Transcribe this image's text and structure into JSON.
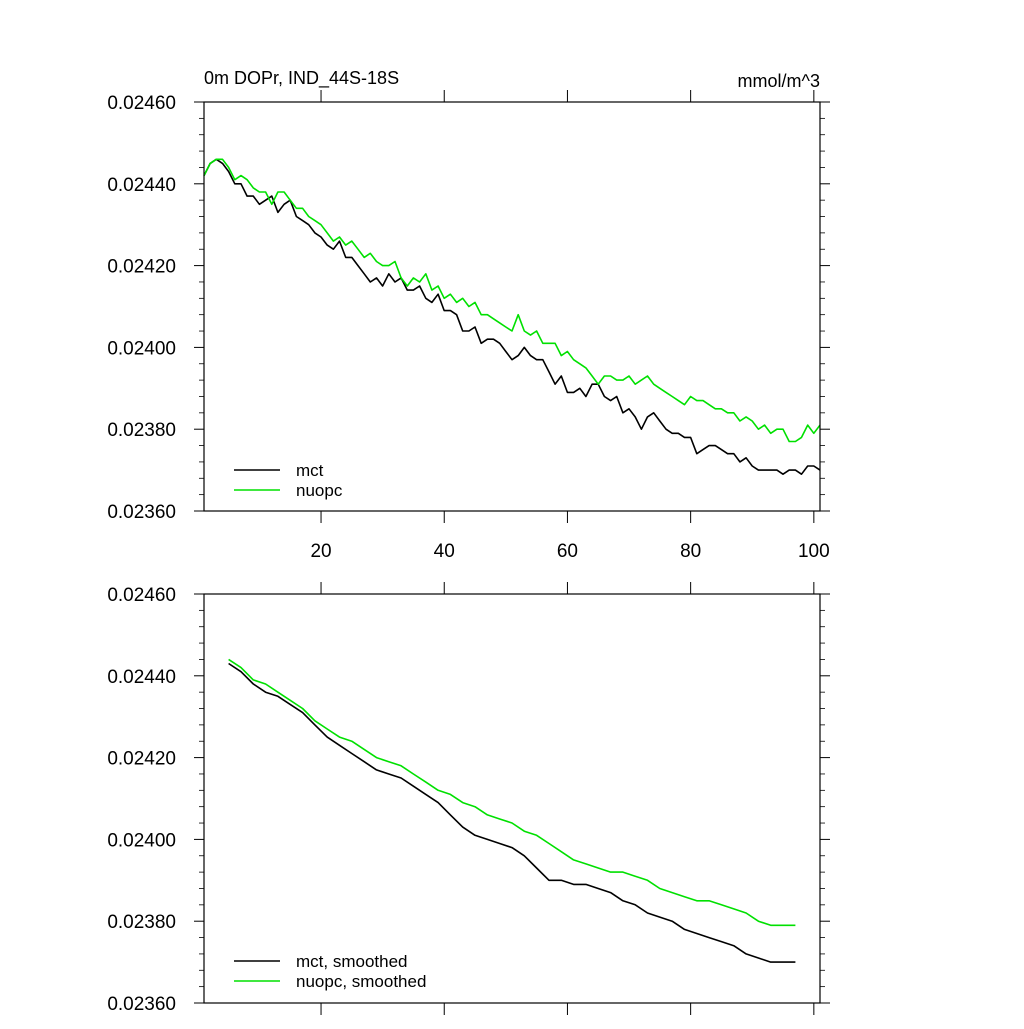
{
  "chart_data": [
    {
      "type": "line",
      "title": "0m DOPr, IND_44S-18S",
      "units": "mmol/m^3",
      "xlim": [
        1,
        101
      ],
      "ylim": [
        0.0236,
        0.0246
      ],
      "x_ticks": [
        20,
        40,
        60,
        80,
        100
      ],
      "x_tick_labels": [
        "20",
        "40",
        "60",
        "80",
        "100"
      ],
      "y_ticks": [
        0.0236,
        0.0238,
        0.024,
        0.0242,
        0.0244,
        0.0246
      ],
      "y_tick_labels": [
        "0.02360",
        "0.02380",
        "0.02400",
        "0.02420",
        "0.02440",
        "0.02460"
      ],
      "legend_position": "bottom-left",
      "series": [
        {
          "name": "mct",
          "color": "#000000",
          "x": [
            1,
            2,
            3,
            4,
            5,
            6,
            7,
            8,
            9,
            10,
            11,
            12,
            13,
            14,
            15,
            16,
            17,
            18,
            19,
            20,
            21,
            22,
            23,
            24,
            25,
            26,
            27,
            28,
            29,
            30,
            31,
            32,
            33,
            34,
            35,
            36,
            37,
            38,
            39,
            40,
            41,
            42,
            43,
            44,
            45,
            46,
            47,
            48,
            49,
            50,
            51,
            52,
            53,
            54,
            55,
            56,
            57,
            58,
            59,
            60,
            61,
            62,
            63,
            64,
            65,
            66,
            67,
            68,
            69,
            70,
            71,
            72,
            73,
            74,
            75,
            76,
            77,
            78,
            79,
            80,
            81,
            82,
            83,
            84,
            85,
            86,
            87,
            88,
            89,
            90,
            91,
            92,
            93,
            94,
            95,
            96,
            97,
            98,
            99,
            100,
            101
          ],
          "values": [
            0.02442,
            0.02445,
            0.02446,
            0.02445,
            0.02443,
            0.0244,
            0.0244,
            0.02437,
            0.02437,
            0.02435,
            0.02436,
            0.02437,
            0.02433,
            0.02435,
            0.02436,
            0.02432,
            0.02431,
            0.0243,
            0.02428,
            0.02427,
            0.02425,
            0.02424,
            0.02426,
            0.02422,
            0.02422,
            0.0242,
            0.02418,
            0.02416,
            0.02417,
            0.02415,
            0.02418,
            0.02416,
            0.02417,
            0.02414,
            0.02414,
            0.02415,
            0.02412,
            0.02411,
            0.02413,
            0.02409,
            0.02409,
            0.02408,
            0.02404,
            0.02404,
            0.02405,
            0.02401,
            0.02402,
            0.02402,
            0.02401,
            0.02399,
            0.02397,
            0.02398,
            0.024,
            0.02398,
            0.02397,
            0.02397,
            0.02394,
            0.02391,
            0.02393,
            0.02389,
            0.02389,
            0.0239,
            0.02388,
            0.02391,
            0.02391,
            0.02388,
            0.02387,
            0.02388,
            0.02384,
            0.02385,
            0.02383,
            0.0238,
            0.02383,
            0.02384,
            0.02382,
            0.0238,
            0.02379,
            0.02379,
            0.02378,
            0.02378,
            0.02374,
            0.02375,
            0.02376,
            0.02376,
            0.02375,
            0.02374,
            0.02374,
            0.02372,
            0.02373,
            0.02371,
            0.0237,
            0.0237,
            0.0237,
            0.0237,
            0.02369,
            0.0237,
            0.0237,
            0.02369,
            0.02371,
            0.02371,
            0.0237
          ]
        },
        {
          "name": "nuopc",
          "color": "#00e000",
          "x": [
            1,
            2,
            3,
            4,
            5,
            6,
            7,
            8,
            9,
            10,
            11,
            12,
            13,
            14,
            15,
            16,
            17,
            18,
            19,
            20,
            21,
            22,
            23,
            24,
            25,
            26,
            27,
            28,
            29,
            30,
            31,
            32,
            33,
            34,
            35,
            36,
            37,
            38,
            39,
            40,
            41,
            42,
            43,
            44,
            45,
            46,
            47,
            48,
            49,
            50,
            51,
            52,
            53,
            54,
            55,
            56,
            57,
            58,
            59,
            60,
            61,
            62,
            63,
            64,
            65,
            66,
            67,
            68,
            69,
            70,
            71,
            72,
            73,
            74,
            75,
            76,
            77,
            78,
            79,
            80,
            81,
            82,
            83,
            84,
            85,
            86,
            87,
            88,
            89,
            90,
            91,
            92,
            93,
            94,
            95,
            96,
            97,
            98,
            99,
            100,
            101
          ],
          "values": [
            0.02442,
            0.02445,
            0.02446,
            0.02446,
            0.02444,
            0.02441,
            0.02442,
            0.02441,
            0.02439,
            0.02438,
            0.02438,
            0.02435,
            0.02438,
            0.02438,
            0.02436,
            0.02434,
            0.02434,
            0.02432,
            0.02431,
            0.0243,
            0.02428,
            0.02426,
            0.02427,
            0.02425,
            0.02426,
            0.02424,
            0.02422,
            0.02423,
            0.02421,
            0.0242,
            0.0242,
            0.02421,
            0.02417,
            0.02415,
            0.02417,
            0.02416,
            0.02418,
            0.02414,
            0.02415,
            0.02412,
            0.02413,
            0.02411,
            0.02412,
            0.0241,
            0.02411,
            0.02408,
            0.02408,
            0.02407,
            0.02406,
            0.02405,
            0.02404,
            0.02408,
            0.02404,
            0.02403,
            0.02404,
            0.02401,
            0.02401,
            0.02401,
            0.02398,
            0.02399,
            0.02397,
            0.02396,
            0.02395,
            0.02393,
            0.02391,
            0.02393,
            0.02393,
            0.02392,
            0.02392,
            0.02393,
            0.02391,
            0.02392,
            0.02393,
            0.02391,
            0.0239,
            0.02389,
            0.02388,
            0.02387,
            0.02386,
            0.02388,
            0.02387,
            0.02387,
            0.02386,
            0.02385,
            0.02385,
            0.02384,
            0.02384,
            0.02382,
            0.02383,
            0.02382,
            0.0238,
            0.02381,
            0.02379,
            0.0238,
            0.0238,
            0.02377,
            0.02377,
            0.02378,
            0.02381,
            0.02379,
            0.02381
          ]
        }
      ]
    },
    {
      "type": "line",
      "xlim": [
        1,
        101
      ],
      "ylim": [
        0.0236,
        0.0246
      ],
      "x_ticks": [
        20,
        40,
        60,
        80,
        100
      ],
      "y_ticks": [
        0.0236,
        0.0238,
        0.024,
        0.0242,
        0.0244,
        0.0246
      ],
      "y_tick_labels": [
        "0.02360",
        "0.02380",
        "0.02400",
        "0.02420",
        "0.02440",
        "0.02460"
      ],
      "legend_position": "bottom-left",
      "series": [
        {
          "name": "mct, smoothed",
          "color": "#000000",
          "x": [
            5,
            7,
            9,
            11,
            13,
            15,
            17,
            19,
            21,
            23,
            25,
            27,
            29,
            31,
            33,
            35,
            37,
            39,
            41,
            43,
            45,
            47,
            49,
            51,
            53,
            55,
            57,
            59,
            61,
            63,
            65,
            67,
            69,
            71,
            73,
            75,
            77,
            79,
            81,
            83,
            85,
            87,
            89,
            91,
            93,
            95,
            97
          ],
          "values": [
            0.02443,
            0.02441,
            0.02438,
            0.02436,
            0.02435,
            0.02433,
            0.02431,
            0.02428,
            0.02425,
            0.02423,
            0.02421,
            0.02419,
            0.02417,
            0.02416,
            0.02415,
            0.02413,
            0.02411,
            0.02409,
            0.02406,
            0.02403,
            0.02401,
            0.024,
            0.02399,
            0.02398,
            0.02396,
            0.02393,
            0.0239,
            0.0239,
            0.02389,
            0.02389,
            0.02388,
            0.02387,
            0.02385,
            0.02384,
            0.02382,
            0.02381,
            0.0238,
            0.02378,
            0.02377,
            0.02376,
            0.02375,
            0.02374,
            0.02372,
            0.02371,
            0.0237,
            0.0237,
            0.0237
          ]
        },
        {
          "name": "nuopc, smoothed",
          "color": "#00e000",
          "x": [
            5,
            7,
            9,
            11,
            13,
            15,
            17,
            19,
            21,
            23,
            25,
            27,
            29,
            31,
            33,
            35,
            37,
            39,
            41,
            43,
            45,
            47,
            49,
            51,
            53,
            55,
            57,
            59,
            61,
            63,
            65,
            67,
            69,
            71,
            73,
            75,
            77,
            79,
            81,
            83,
            85,
            87,
            89,
            91,
            93,
            95,
            97
          ],
          "values": [
            0.02444,
            0.02442,
            0.02439,
            0.02438,
            0.02436,
            0.02434,
            0.02432,
            0.02429,
            0.02427,
            0.02425,
            0.02424,
            0.02422,
            0.0242,
            0.02419,
            0.02418,
            0.02416,
            0.02414,
            0.02412,
            0.02411,
            0.02409,
            0.02408,
            0.02406,
            0.02405,
            0.02404,
            0.02402,
            0.02401,
            0.02399,
            0.02397,
            0.02395,
            0.02394,
            0.02393,
            0.02392,
            0.02392,
            0.02391,
            0.0239,
            0.02388,
            0.02387,
            0.02386,
            0.02385,
            0.02385,
            0.02384,
            0.02383,
            0.02382,
            0.0238,
            0.02379,
            0.02379,
            0.02379
          ]
        }
      ]
    }
  ]
}
